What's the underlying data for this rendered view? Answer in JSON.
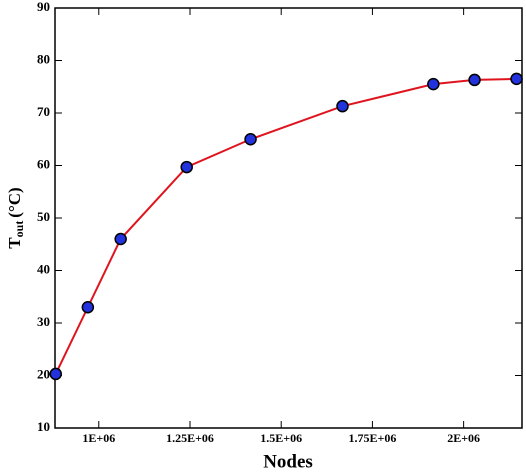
{
  "chart_data": {
    "type": "line",
    "xlabel": "Nodes",
    "ylabel": {
      "main": "T",
      "sub": "out",
      "unit": "(°C)"
    },
    "x": [
      882000,
      970000,
      1060000,
      1241000,
      1416000,
      1668000,
      1917000,
      2030000,
      2145000
    ],
    "series": [
      {
        "color": "#e0141e",
        "marker_color": "#2233dd",
        "values": [
          20.3,
          33.0,
          46.0,
          59.7,
          65.0,
          71.3,
          75.5,
          76.3,
          76.5
        ]
      }
    ],
    "xlim": [
      880000,
      2160000
    ],
    "ylim": [
      10,
      90
    ],
    "xticks": [
      {
        "value": 1000000,
        "label": "1E+06"
      },
      {
        "value": 1250000,
        "label": "1.25E+06"
      },
      {
        "value": 1500000,
        "label": "1.5E+06"
      },
      {
        "value": 1750000,
        "label": "1.75E+06"
      },
      {
        "value": 2000000,
        "label": "2E+06"
      }
    ],
    "yticks": [
      10,
      20,
      30,
      40,
      50,
      60,
      70,
      80,
      90
    ]
  }
}
